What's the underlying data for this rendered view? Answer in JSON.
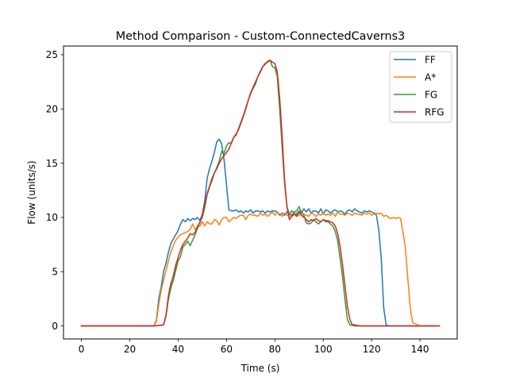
{
  "chart_data": {
    "type": "line",
    "title": "Method Comparison - Custom-ConnectedCaverns3",
    "xlabel": "Time (s)",
    "ylabel": "Flow (units/s)",
    "xlim": [
      -7.4,
      155.4
    ],
    "ylim": [
      -1.2,
      25.8
    ],
    "xticks": [
      0,
      20,
      40,
      60,
      80,
      100,
      120,
      140
    ],
    "yticks": [
      0,
      5,
      10,
      15,
      20,
      25
    ],
    "grid": false,
    "legend_position": "top-right",
    "series": [
      {
        "name": "FF",
        "color": "#1f77b4",
        "x": [
          0,
          10,
          20,
          30,
          31,
          32,
          33,
          34,
          35,
          36,
          37,
          38,
          39,
          40,
          41,
          42,
          43,
          44,
          45,
          46,
          47,
          48,
          49,
          50,
          51,
          52,
          53,
          54,
          55,
          56,
          57,
          58,
          59,
          60,
          61,
          62,
          63,
          64,
          65,
          66,
          67,
          68,
          69,
          70,
          71,
          72,
          73,
          74,
          75,
          76,
          77,
          78,
          79,
          80,
          81,
          82,
          83,
          84,
          85,
          86,
          87,
          88,
          89,
          90,
          91,
          92,
          93,
          94,
          95,
          96,
          97,
          98,
          99,
          100,
          101,
          102,
          103,
          104,
          105,
          106,
          107,
          108,
          109,
          110,
          111,
          112,
          113,
          114,
          115,
          116,
          117,
          118,
          119,
          120,
          121,
          122,
          123,
          124,
          125,
          126,
          127,
          130,
          140,
          148
        ],
        "y": [
          0,
          0,
          0,
          0,
          0.5,
          2.5,
          3.6,
          5.0,
          5.8,
          6.8,
          7.6,
          8.0,
          8.4,
          8.8,
          9.4,
          9.8,
          9.6,
          9.9,
          9.7,
          9.9,
          9.8,
          10.0,
          9.7,
          10.3,
          11.5,
          13.6,
          14.5,
          15.2,
          16.0,
          17.0,
          17.2,
          16.8,
          15.3,
          13.0,
          10.7,
          10.6,
          10.6,
          10.7,
          10.5,
          10.6,
          10.4,
          10.6,
          10.5,
          10.7,
          10.4,
          10.6,
          10.6,
          10.5,
          10.6,
          10.4,
          10.6,
          10.5,
          10.6,
          10.6,
          10.5,
          10.2,
          10.4,
          10.2,
          10.5,
          10.3,
          10.6,
          10.4,
          10.3,
          10.6,
          10.4,
          10.8,
          10.5,
          10.8,
          10.4,
          10.6,
          10.6,
          10.4,
          10.8,
          10.3,
          10.7,
          10.6,
          10.4,
          10.6,
          10.7,
          10.5,
          10.6,
          10.5,
          10.3,
          10.6,
          10.7,
          10.5,
          10.8,
          10.6,
          10.5,
          10.4,
          10.6,
          10.5,
          10.6,
          10.5,
          10.4,
          10.2,
          8.8,
          6.2,
          1.7,
          0.1,
          0,
          0,
          0,
          0
        ]
      },
      {
        "name": "A*",
        "color": "#ff7f0e",
        "x": [
          0,
          10,
          20,
          30,
          31,
          32,
          33,
          34,
          35,
          36,
          37,
          38,
          39,
          40,
          41,
          42,
          43,
          44,
          45,
          46,
          47,
          48,
          49,
          50,
          51,
          52,
          53,
          54,
          55,
          56,
          57,
          58,
          59,
          60,
          61,
          62,
          63,
          64,
          65,
          66,
          67,
          68,
          69,
          70,
          71,
          72,
          73,
          74,
          75,
          76,
          77,
          78,
          79,
          80,
          81,
          82,
          83,
          84,
          85,
          86,
          87,
          88,
          89,
          90,
          91,
          92,
          93,
          94,
          95,
          96,
          97,
          98,
          99,
          100,
          101,
          102,
          103,
          104,
          105,
          106,
          107,
          108,
          109,
          110,
          111,
          112,
          113,
          114,
          115,
          116,
          117,
          118,
          119,
          120,
          121,
          122,
          123,
          124,
          125,
          126,
          127,
          128,
          129,
          130,
          131,
          132,
          133,
          134,
          135,
          136,
          137,
          140,
          148
        ],
        "y": [
          0,
          0,
          0,
          0,
          0.4,
          2.0,
          3.3,
          4.2,
          5.1,
          6.0,
          6.8,
          7.4,
          7.9,
          8.2,
          8.4,
          8.5,
          8.6,
          8.7,
          8.9,
          9.4,
          8.9,
          9.1,
          9.2,
          9.6,
          9.2,
          9.6,
          9.4,
          9.4,
          9.8,
          9.7,
          9.3,
          9.8,
          10.0,
          10.0,
          9.6,
          9.8,
          10.0,
          9.9,
          10.1,
          10.2,
          10.2,
          9.8,
          10.2,
          10.3,
          10.2,
          10.2,
          10.1,
          10.4,
          10.2,
          10.3,
          10.1,
          10.3,
          10.5,
          10.2,
          10.5,
          10.3,
          10.1,
          10.4,
          10.2,
          10.1,
          10.2,
          10.5,
          10.1,
          10.2,
          10.4,
          10.3,
          10.2,
          10.1,
          10.4,
          10.3,
          10.1,
          10.3,
          10.2,
          10.4,
          10.2,
          10.3,
          10.2,
          10.4,
          10.1,
          10.5,
          10.3,
          10.3,
          10.2,
          10.4,
          10.3,
          10.2,
          10.4,
          10.3,
          10.3,
          10.2,
          10.4,
          10.3,
          10.4,
          10.2,
          10.3,
          10.4,
          10.3,
          10.4,
          10.1,
          10.2,
          10.0,
          9.9,
          10.0,
          9.9,
          10.0,
          9.9,
          8.6,
          7.2,
          4.3,
          1.6,
          0.3,
          0,
          0
        ]
      },
      {
        "name": "FG",
        "color": "#2ca02c",
        "x": [
          0,
          10,
          20,
          30,
          34,
          35,
          36,
          37,
          38,
          39,
          40,
          41,
          42,
          43,
          44,
          45,
          46,
          47,
          48,
          49,
          50,
          51,
          52,
          53,
          54,
          55,
          56,
          57,
          58,
          59,
          60,
          61,
          62,
          63,
          64,
          65,
          66,
          67,
          68,
          69,
          70,
          71,
          72,
          73,
          74,
          75,
          76,
          77,
          78,
          79,
          80,
          81,
          82,
          83,
          84,
          85,
          86,
          87,
          88,
          89,
          90,
          91,
          92,
          93,
          94,
          95,
          96,
          97,
          98,
          99,
          100,
          101,
          102,
          103,
          104,
          105,
          106,
          107,
          108,
          109,
          110,
          111,
          112,
          113,
          120,
          130,
          140,
          148
        ],
        "y": [
          0,
          0,
          0,
          0,
          0.1,
          0.9,
          2.5,
          3.5,
          4.2,
          5.1,
          6.0,
          6.4,
          7.3,
          7.5,
          7.8,
          7.4,
          7.9,
          8.4,
          9.0,
          9.6,
          10.0,
          10.9,
          12.1,
          12.8,
          13.4,
          14.1,
          14.6,
          15.2,
          16.1,
          15.9,
          16.6,
          16.9,
          16.8,
          17.4,
          17.7,
          18.1,
          18.7,
          19.3,
          20.0,
          20.8,
          21.4,
          21.9,
          22.3,
          23.0,
          23.5,
          23.9,
          24.1,
          24.4,
          24.5,
          23.9,
          23.8,
          23.0,
          20.0,
          16.5,
          13.2,
          11.0,
          10.3,
          10.2,
          10.5,
          10.6,
          11.0,
          10.5,
          10.2,
          9.5,
          9.4,
          9.5,
          9.8,
          9.6,
          9.4,
          9.6,
          9.8,
          9.6,
          9.6,
          9.4,
          9.2,
          8.7,
          7.8,
          6.2,
          4.5,
          2.4,
          0.6,
          0.1,
          0.05,
          0,
          0,
          0,
          0,
          0
        ]
      },
      {
        "name": "RFG",
        "color": "#d62728",
        "x": [
          0,
          10,
          20,
          30,
          34,
          35,
          36,
          37,
          38,
          39,
          40,
          41,
          42,
          43,
          44,
          45,
          46,
          47,
          48,
          49,
          50,
          51,
          52,
          53,
          54,
          55,
          56,
          57,
          58,
          59,
          60,
          61,
          62,
          63,
          64,
          65,
          66,
          67,
          68,
          69,
          70,
          71,
          72,
          73,
          74,
          75,
          76,
          77,
          78,
          79,
          80,
          81,
          82,
          83,
          84,
          85,
          86,
          87,
          88,
          89,
          90,
          91,
          92,
          93,
          94,
          95,
          96,
          97,
          98,
          99,
          100,
          101,
          102,
          103,
          104,
          105,
          106,
          107,
          108,
          109,
          110,
          111,
          112,
          113,
          115,
          120,
          130,
          140,
          148
        ],
        "y": [
          0,
          0,
          0,
          0,
          0.1,
          1.0,
          2.8,
          3.9,
          4.6,
          5.6,
          6.3,
          7.0,
          7.5,
          7.8,
          8.1,
          8.5,
          8.4,
          8.6,
          9.2,
          9.5,
          10.2,
          11.2,
          12.2,
          12.9,
          13.6,
          14.1,
          14.5,
          15.0,
          15.4,
          15.7,
          16.0,
          16.3,
          16.9,
          17.4,
          17.6,
          18.2,
          18.8,
          19.4,
          20.1,
          20.8,
          21.5,
          22.0,
          22.5,
          23.0,
          23.4,
          23.9,
          24.2,
          24.3,
          24.5,
          24.3,
          24.2,
          23.4,
          21.0,
          17.5,
          13.5,
          11.0,
          9.8,
          10.1,
          10.3,
          10.1,
          10.5,
          10.2,
          10.0,
          9.8,
          9.6,
          9.8,
          9.7,
          9.9,
          9.7,
          9.6,
          9.8,
          9.7,
          9.7,
          9.6,
          9.5,
          9.2,
          8.5,
          7.3,
          5.6,
          3.7,
          1.8,
          0.6,
          0.1,
          0.1,
          0,
          0,
          0,
          0,
          0
        ]
      }
    ]
  }
}
